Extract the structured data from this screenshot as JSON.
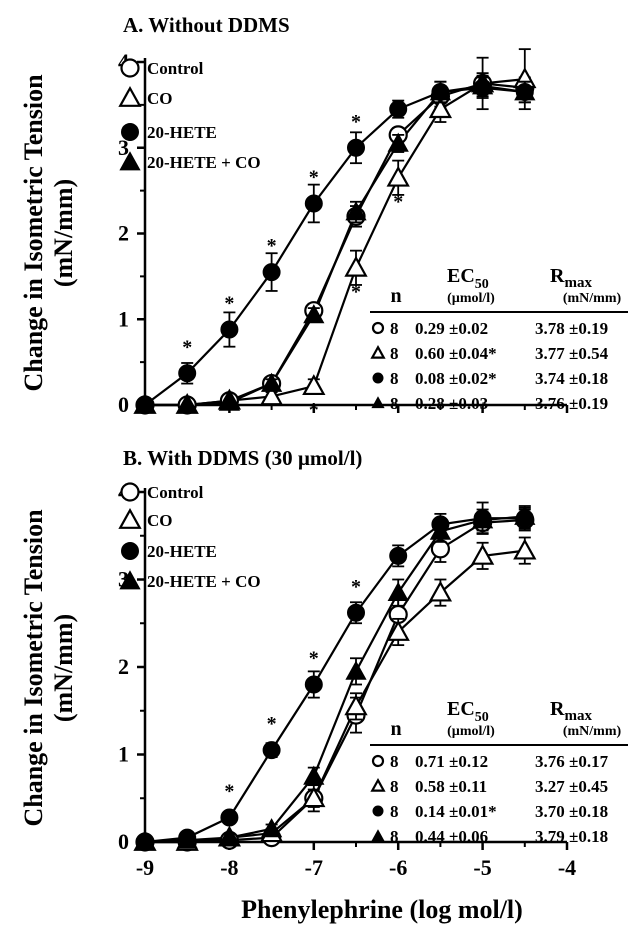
{
  "chart_data": [
    {
      "type": "line",
      "title": "A. Without DDMS",
      "ylabel": "Change in Isometric Tension (mN/mm)",
      "xlabel": "",
      "xlim": [
        -9,
        -4
      ],
      "ylim": [
        0,
        4
      ],
      "x_ticks": [
        "-9",
        "-8",
        "-7",
        "-6",
        "-5",
        "-4"
      ],
      "y_ticks": [
        "0",
        "1",
        "2",
        "3",
        "4"
      ],
      "x": [
        -9,
        -8.5,
        -8,
        -7.5,
        -7,
        -6.5,
        -6,
        -5.5,
        -5,
        -4.5
      ],
      "series": [
        {
          "name": "Control",
          "marker": "open-circle",
          "values": [
            0.0,
            0.0,
            0.05,
            0.25,
            1.1,
            2.2,
            3.15,
            3.6,
            3.75,
            3.7
          ],
          "errors": [
            0.03,
            0.03,
            0.03,
            0.05,
            0.08,
            0.12,
            0.08,
            0.12,
            0.12,
            0.12
          ]
        },
        {
          "name": "CO",
          "marker": "open-triangle",
          "values": [
            0.0,
            0.0,
            0.05,
            0.1,
            0.22,
            1.6,
            2.65,
            3.45,
            3.75,
            3.8
          ],
          "errors": [
            0.03,
            0.03,
            0.03,
            0.05,
            0.08,
            0.2,
            0.2,
            0.15,
            0.3,
            0.35
          ]
        },
        {
          "name": "20-HETE",
          "marker": "filled-circle",
          "values": [
            0.0,
            0.37,
            0.88,
            1.55,
            2.35,
            3.0,
            3.45,
            3.65,
            3.7,
            3.65
          ],
          "errors": [
            0.03,
            0.12,
            0.2,
            0.22,
            0.22,
            0.18,
            0.1,
            0.12,
            0.12,
            0.12
          ]
        },
        {
          "name": "20-HETE + CO",
          "marker": "filled-triangle",
          "values": [
            0.0,
            0.0,
            0.03,
            0.25,
            1.05,
            2.25,
            3.05,
            3.65,
            3.72,
            3.65
          ],
          "errors": [
            0.03,
            0.03,
            0.03,
            0.05,
            0.08,
            0.12,
            0.1,
            0.12,
            0.12,
            0.12
          ]
        }
      ],
      "significance_stars": [
        {
          "x": -8.5,
          "y": 0.37,
          "pos": "above"
        },
        {
          "x": -8,
          "y": 0.88,
          "pos": "above"
        },
        {
          "x": -7.5,
          "y": 1.55,
          "pos": "above"
        },
        {
          "x": -7,
          "y": 2.35,
          "pos": "above"
        },
        {
          "x": -6.5,
          "y": 3.0,
          "pos": "above"
        },
        {
          "x": -7,
          "y": 0.22,
          "pos": "below"
        },
        {
          "x": -6.5,
          "y": 1.6,
          "pos": "below"
        },
        {
          "x": -6,
          "y": 2.65,
          "pos": "below"
        }
      ],
      "table": {
        "headers": [
          "n",
          "EC",
          "50",
          "(µmol/l)",
          "R",
          "max",
          "(mN/mm)"
        ],
        "rows": [
          {
            "marker": "open-circle",
            "n": "8",
            "ec50": "0.29 ±0.02",
            "rmax": "3.78 ±0.19"
          },
          {
            "marker": "open-triangle",
            "n": "8",
            "ec50": "0.60 ±0.04*",
            "rmax": "3.77 ±0.54"
          },
          {
            "marker": "filled-circle",
            "n": "8",
            "ec50": "0.08 ±0.02*",
            "rmax": "3.74 ±0.18"
          },
          {
            "marker": "filled-triangle",
            "n": "8",
            "ec50": "0.28 ±0.03",
            "rmax": "3.76 ±0.19"
          }
        ]
      }
    },
    {
      "type": "line",
      "title": "B. With DDMS (30 µmol/l)",
      "ylabel": "Change in Isometric Tension (mN/mm)",
      "xlabel": "Phenylephrine (log mol/l)",
      "xlim": [
        -9,
        -4
      ],
      "ylim": [
        0,
        4
      ],
      "x_ticks": [
        "-9",
        "-8",
        "-7",
        "-6",
        "-5",
        "-4"
      ],
      "y_ticks": [
        "0",
        "1",
        "2",
        "3",
        "4"
      ],
      "x": [
        -9,
        -8.5,
        -8,
        -7.5,
        -7,
        -6.5,
        -6,
        -5.5,
        -5,
        -4.5
      ],
      "series": [
        {
          "name": "Control",
          "marker": "open-circle",
          "values": [
            0.0,
            0.0,
            0.02,
            0.05,
            0.5,
            1.45,
            2.6,
            3.35,
            3.65,
            3.68
          ],
          "errors": [
            0.03,
            0.03,
            0.03,
            0.05,
            0.15,
            0.2,
            0.2,
            0.15,
            0.12,
            0.12
          ]
        },
        {
          "name": "CO",
          "marker": "open-triangle",
          "values": [
            0.0,
            0.0,
            0.05,
            0.1,
            0.5,
            1.55,
            2.4,
            2.85,
            3.27,
            3.33
          ],
          "errors": [
            0.03,
            0.03,
            0.03,
            0.05,
            0.1,
            0.15,
            0.15,
            0.15,
            0.15,
            0.15
          ]
        },
        {
          "name": "20-HETE",
          "marker": "filled-circle",
          "values": [
            0.0,
            0.05,
            0.28,
            1.05,
            1.8,
            2.62,
            3.27,
            3.63,
            3.7,
            3.7
          ],
          "errors": [
            0.03,
            0.03,
            0.05,
            0.08,
            0.15,
            0.12,
            0.12,
            0.12,
            0.18,
            0.12
          ]
        },
        {
          "name": "20-HETE + CO",
          "marker": "filled-triangle",
          "values": [
            0.0,
            0.02,
            0.05,
            0.15,
            0.75,
            1.95,
            2.85,
            3.55,
            3.68,
            3.72
          ],
          "errors": [
            0.03,
            0.03,
            0.03,
            0.05,
            0.1,
            0.15,
            0.15,
            0.12,
            0.12,
            0.12
          ]
        }
      ],
      "significance_stars": [
        {
          "x": -8,
          "y": 0.28,
          "pos": "above"
        },
        {
          "x": -7.5,
          "y": 1.05,
          "pos": "above"
        },
        {
          "x": -7,
          "y": 1.8,
          "pos": "above"
        },
        {
          "x": -6.5,
          "y": 2.62,
          "pos": "above"
        }
      ],
      "table": {
        "headers": [
          "n",
          "EC",
          "50",
          "(µmol/l)",
          "R",
          "max",
          "(mN/mm)"
        ],
        "rows": [
          {
            "marker": "open-circle",
            "n": "8",
            "ec50": "0.71 ±0.12",
            "rmax": "3.76 ±0.17"
          },
          {
            "marker": "open-triangle",
            "n": "8",
            "ec50": "0.58 ±0.11",
            "rmax": "3.27 ±0.45"
          },
          {
            "marker": "filled-circle",
            "n": "8",
            "ec50": "0.14 ±0.01*",
            "rmax": "3.70 ±0.18"
          },
          {
            "marker": "filled-triangle",
            "n": "8",
            "ec50": "0.44 ±0.06",
            "rmax": "3.79 ±0.18"
          }
        ]
      }
    }
  ]
}
